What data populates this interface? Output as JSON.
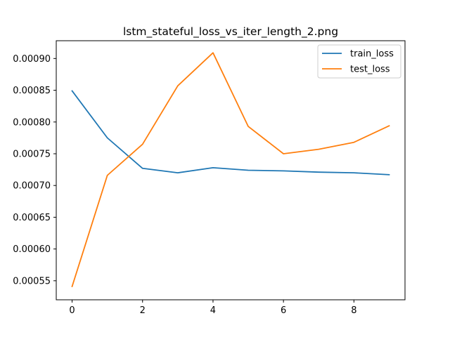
{
  "chart_data": {
    "type": "line",
    "title": "lstm_stateful_loss_vs_iter_length_2.png",
    "xlabel": "",
    "ylabel": "",
    "x": [
      0,
      1,
      2,
      3,
      4,
      5,
      6,
      7,
      8,
      9
    ],
    "xlim": [
      -0.45,
      9.45
    ],
    "ylim": [
      0.00052,
      0.000928
    ],
    "x_ticks": [
      0,
      2,
      4,
      6,
      8
    ],
    "x_tick_labels": [
      "0",
      "2",
      "4",
      "6",
      "8"
    ],
    "y_ticks": [
      0.00055,
      0.0006,
      0.00065,
      0.0007,
      0.00075,
      0.0008,
      0.00085,
      0.0009
    ],
    "y_tick_labels": [
      "0.00055",
      "0.00060",
      "0.00065",
      "0.00070",
      "0.00075",
      "0.00080",
      "0.00085",
      "0.00090"
    ],
    "grid": false,
    "legend_position": "top-right",
    "series": [
      {
        "name": "train_loss",
        "color": "#1f77b4",
        "values": [
          0.000849,
          0.000775,
          0.000727,
          0.00072,
          0.000728,
          0.000724,
          0.000723,
          0.000721,
          0.00072,
          0.000717
        ]
      },
      {
        "name": "test_loss",
        "color": "#ff7f0e",
        "values": [
          0.000541,
          0.000716,
          0.000765,
          0.000857,
          0.000909,
          0.000793,
          0.00075,
          0.000757,
          0.000768,
          0.000794
        ]
      }
    ]
  }
}
